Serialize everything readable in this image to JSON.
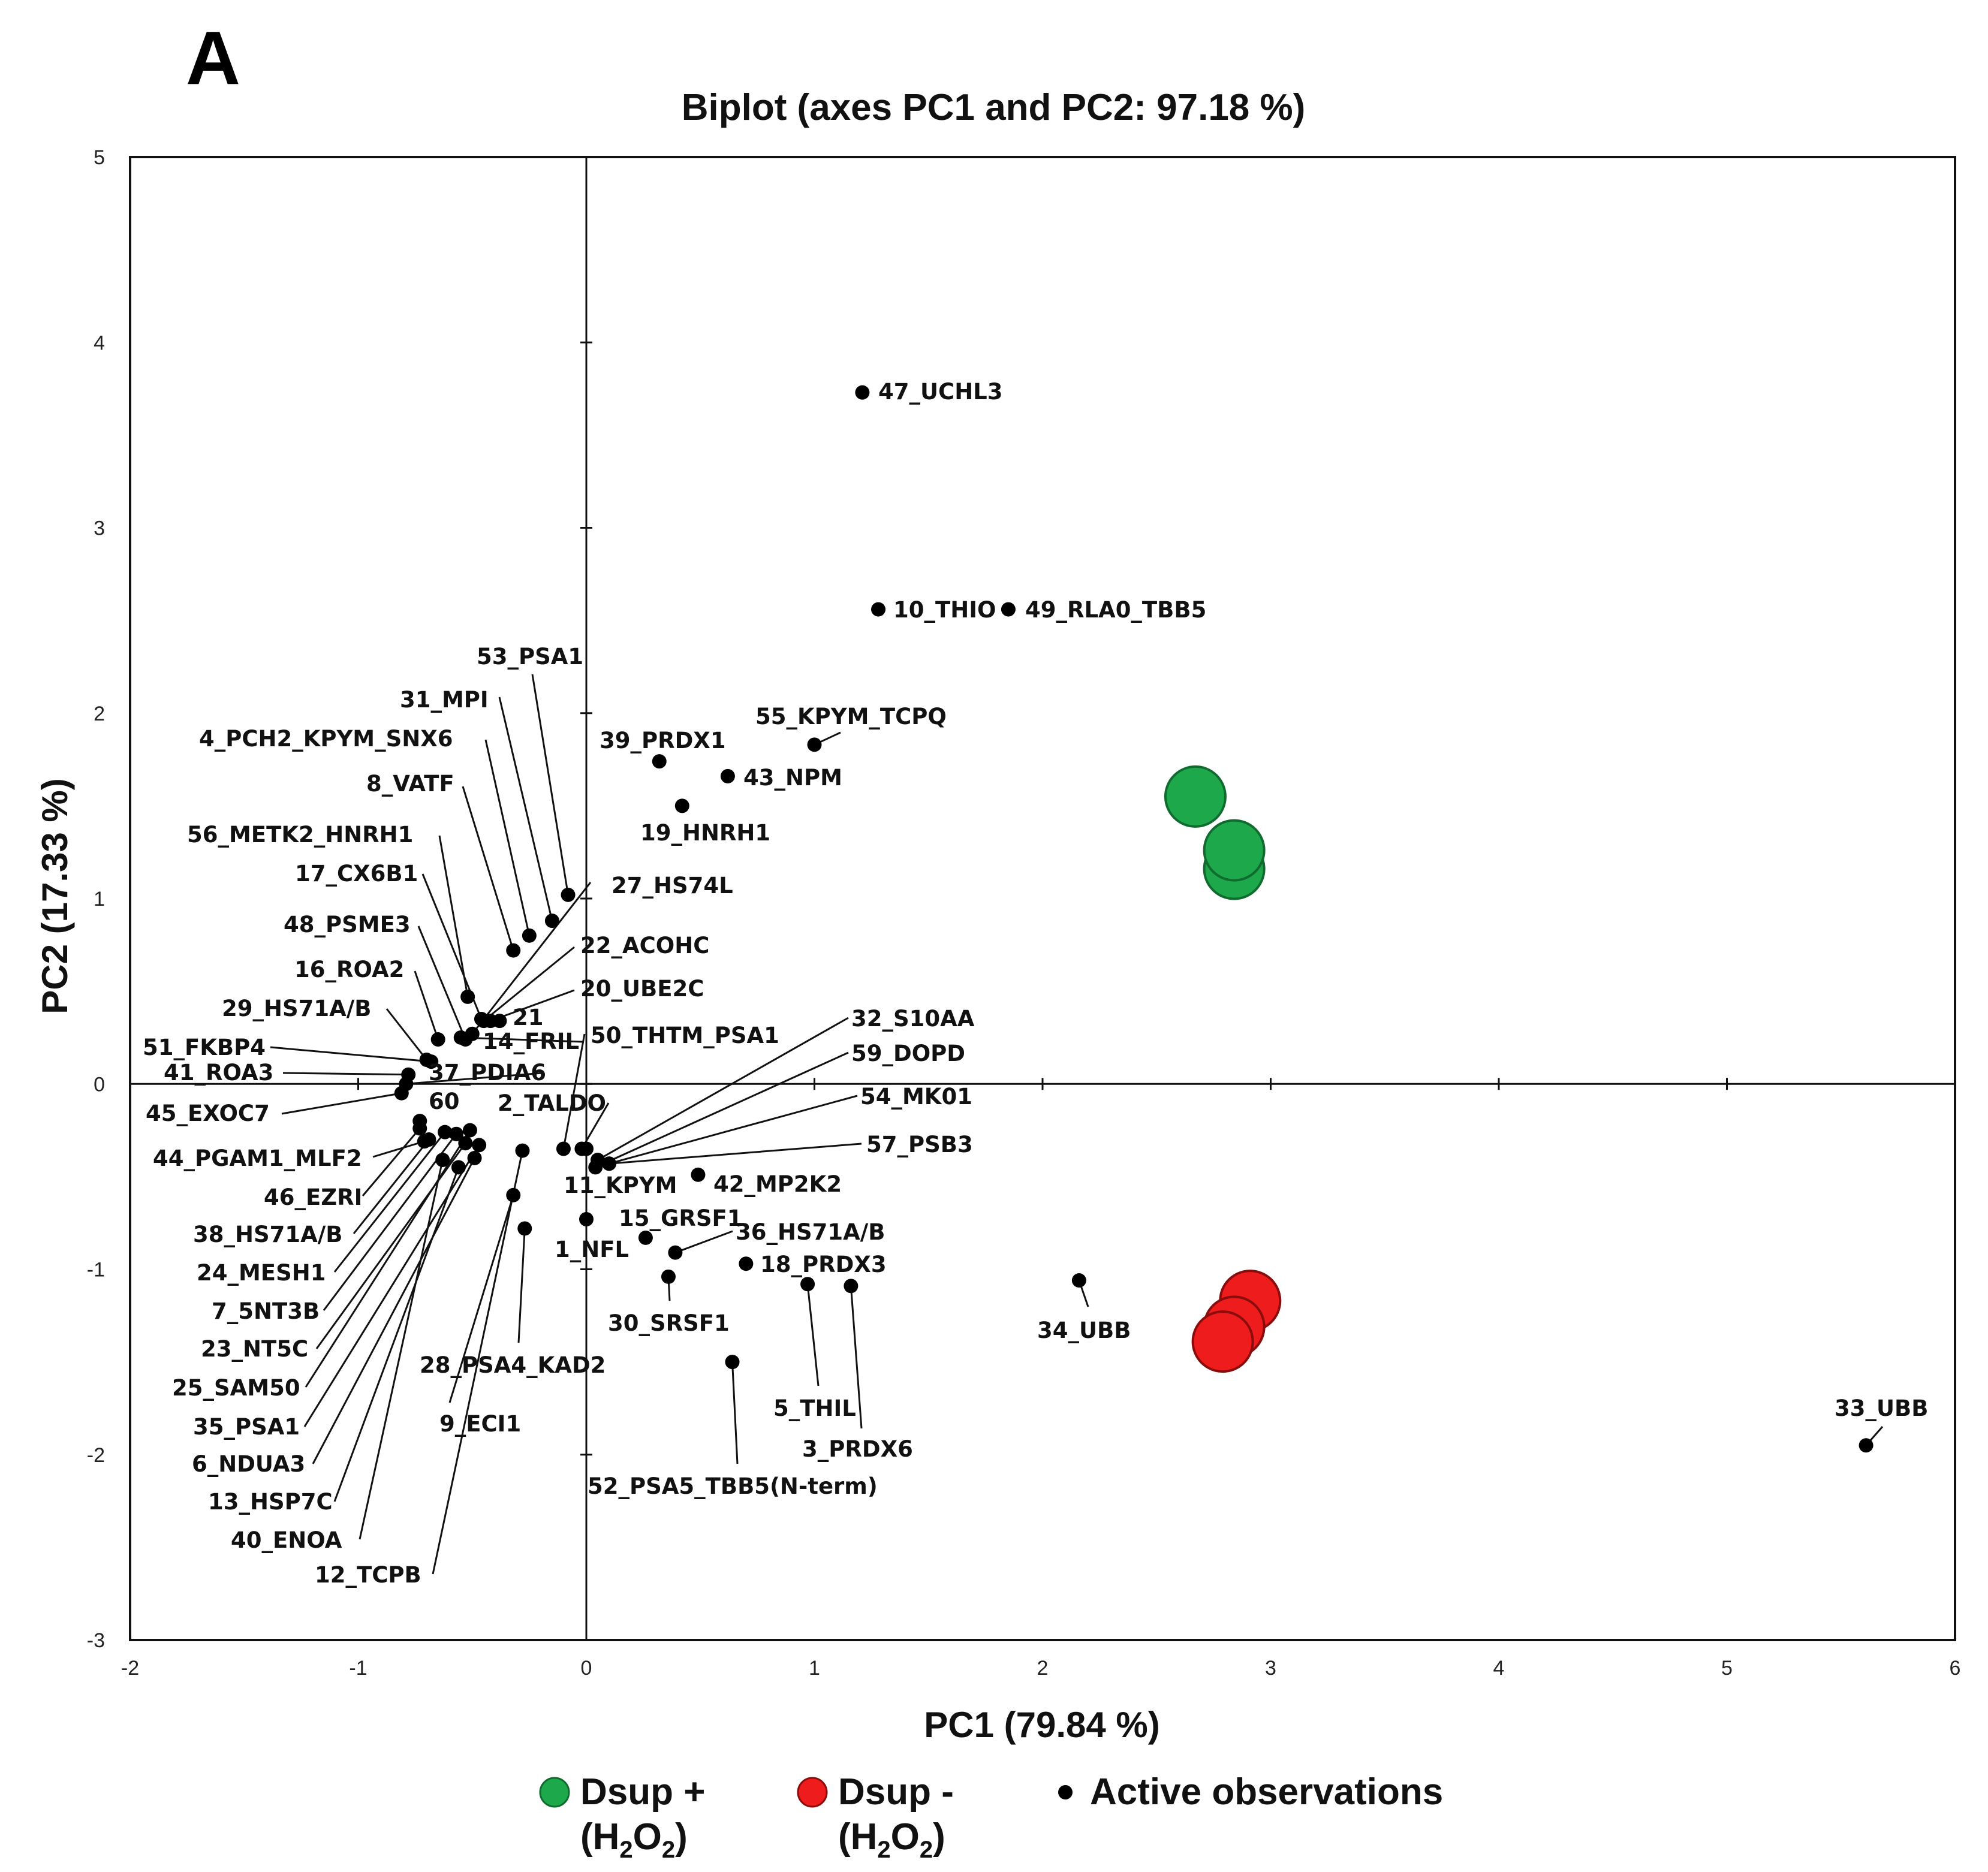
{
  "panel_label": "A",
  "chart_data": {
    "type": "scatter",
    "title": "Biplot (axes PC1 and PC2: 97.18 %)",
    "xlabel": "PC1 (79.84 %)",
    "ylabel": "PC2 (17.33 %)",
    "xlim": [
      -2,
      6
    ],
    "ylim": [
      -3,
      5
    ],
    "xticks": [
      "-2",
      "-1",
      "0",
      "1",
      "2",
      "3",
      "4",
      "5",
      "6"
    ],
    "yticks": [
      "-3",
      "-2",
      "-1",
      "0",
      "1",
      "2",
      "3",
      "4",
      "5"
    ],
    "series": [
      {
        "name": "Dsup + (H2O2)",
        "color": "#1ea84c",
        "stroke": "#0f6b2e",
        "points": [
          [
            2.67,
            1.55
          ],
          [
            2.84,
            1.16
          ],
          [
            2.84,
            1.26
          ]
        ]
      },
      {
        "name": "Dsup - (H2O2)",
        "color": "#ee1c1c",
        "stroke": "#8a0c0c",
        "points": [
          [
            2.91,
            -1.17
          ],
          [
            2.84,
            -1.31
          ],
          [
            2.79,
            -1.39
          ]
        ]
      }
    ],
    "observations": [
      {
        "label": "47_UCHL3",
        "x": 1.21,
        "y": 3.73
      },
      {
        "label": "10_THIO",
        "x": 1.28,
        "y": 2.56
      },
      {
        "label": "49_RLA0_TBB5",
        "x": 1.85,
        "y": 2.56
      },
      {
        "label": "55_KPYM_TCPQ",
        "x": 1.0,
        "y": 1.83
      },
      {
        "label": "39_PRDX1",
        "x": 0.32,
        "y": 1.74
      },
      {
        "label": "43_NPM",
        "x": 0.62,
        "y": 1.66
      },
      {
        "label": "19_HNRH1",
        "x": 0.42,
        "y": 1.5
      },
      {
        "label": "53_PSA1",
        "x": -0.08,
        "y": 1.02
      },
      {
        "label": "31_MPI",
        "x": -0.15,
        "y": 0.88
      },
      {
        "label": "4_PCH2_KPYM_SNX6",
        "x": -0.25,
        "y": 0.8
      },
      {
        "label": "8_VATF",
        "x": -0.32,
        "y": 0.72
      },
      {
        "label": "56_METK2_HNRH1",
        "x": -0.52,
        "y": 0.47
      },
      {
        "label": "17_CX6B1",
        "x": -0.46,
        "y": 0.35
      },
      {
        "label": "48_PSME3",
        "x": -0.53,
        "y": 0.24
      },
      {
        "label": "16_ROA2",
        "x": -0.65,
        "y": 0.24
      },
      {
        "label": "29_HS71A/B",
        "x": -0.7,
        "y": 0.13
      },
      {
        "label": "51_FKBP4",
        "x": -0.68,
        "y": 0.12
      },
      {
        "label": "41_ROA3",
        "x": -0.78,
        "y": 0.05
      },
      {
        "label": "45_EXOC7",
        "x": -0.81,
        "y": -0.05
      },
      {
        "label": "27_HS74L",
        "x": -0.5,
        "y": 0.27
      },
      {
        "label": "22_ACOHC",
        "x": -0.45,
        "y": 0.34
      },
      {
        "label": "20_UBE2C",
        "x": -0.42,
        "y": 0.34
      },
      {
        "label": "21",
        "x": -0.38,
        "y": 0.34
      },
      {
        "label": "14_FRIL",
        "x": -0.55,
        "y": 0.25
      },
      {
        "label": "37_PDIA6",
        "x": -0.79,
        "y": 0.0
      },
      {
        "label": "60",
        "x": -0.73,
        "y": -0.2
      },
      {
        "label": "50_THTM_PSA1",
        "x": -0.1,
        "y": -0.35
      },
      {
        "label": "2_TALDO",
        "x": -0.02,
        "y": -0.35
      },
      {
        "label": "32_S10AA",
        "x": 0.05,
        "y": -0.41
      },
      {
        "label": "59_DOPD",
        "x": 0.04,
        "y": -0.45
      },
      {
        "label": "54_MK01",
        "x": 0.1,
        "y": -0.43
      },
      {
        "label": "57_PSB3",
        "x": 0.1,
        "y": -0.43
      },
      {
        "label": "11_KPYM",
        "x": 0.0,
        "y": -0.35
      },
      {
        "label": "42_MP2K2",
        "x": 0.49,
        "y": -0.49
      },
      {
        "label": "15_GRSF1",
        "x": 0.26,
        "y": -0.83
      },
      {
        "label": "36_HS71A/B",
        "x": 0.39,
        "y": -0.91
      },
      {
        "label": "1_NFL",
        "x": 0.0,
        "y": -0.73
      },
      {
        "label": "18_PRDX3",
        "x": 0.7,
        "y": -0.97
      },
      {
        "label": "30_SRSF1",
        "x": 0.36,
        "y": -1.04
      },
      {
        "label": "5_THIL",
        "x": 0.97,
        "y": -1.08
      },
      {
        "label": "3_PRDX6",
        "x": 1.16,
        "y": -1.09
      },
      {
        "label": "52_PSA5_TBB5(N-term)",
        "x": 0.64,
        "y": -1.5
      },
      {
        "label": "34_UBB",
        "x": 2.16,
        "y": -1.06
      },
      {
        "label": "33_UBB",
        "x": 5.61,
        "y": -1.95
      },
      {
        "label": "44_PGAM1_MLF2",
        "x": -0.71,
        "y": -0.31
      },
      {
        "label": "46_EZRI",
        "x": -0.73,
        "y": -0.24
      },
      {
        "label": "38_HS71A/B",
        "x": -0.69,
        "y": -0.3
      },
      {
        "label": "24_MESH1",
        "x": -0.62,
        "y": -0.26
      },
      {
        "label": "7_5NT3B",
        "x": -0.57,
        "y": -0.27
      },
      {
        "label": "23_NT5C",
        "x": -0.53,
        "y": -0.32
      },
      {
        "label": "25_SAM50",
        "x": -0.51,
        "y": -0.25
      },
      {
        "label": "35_PSA1",
        "x": -0.47,
        "y": -0.33
      },
      {
        "label": "6_NDUA3",
        "x": -0.49,
        "y": -0.4
      },
      {
        "label": "13_HSP7C",
        "x": -0.56,
        "y": -0.45
      },
      {
        "label": "40_ENOA",
        "x": -0.63,
        "y": -0.41
      },
      {
        "label": "12_TCPB",
        "x": -0.28,
        "y": -0.36
      },
      {
        "label": "9_ECI1",
        "x": -0.32,
        "y": -0.6
      },
      {
        "label": "28_PSA4_KAD2",
        "x": -0.27,
        "y": -0.78
      }
    ]
  },
  "legend": {
    "dsup_plus": {
      "line1": "Dsup +",
      "line2_pre": "(H",
      "line2_sub1": "2",
      "line2_mid": "O",
      "line2_sub2": "2",
      "line2_post": ")"
    },
    "dsup_minus": {
      "line1": "Dsup -",
      "line2_pre": "(H",
      "line2_sub1": "2",
      "line2_mid": "O",
      "line2_sub2": "2",
      "line2_post": ")"
    },
    "active": "Active observations"
  }
}
